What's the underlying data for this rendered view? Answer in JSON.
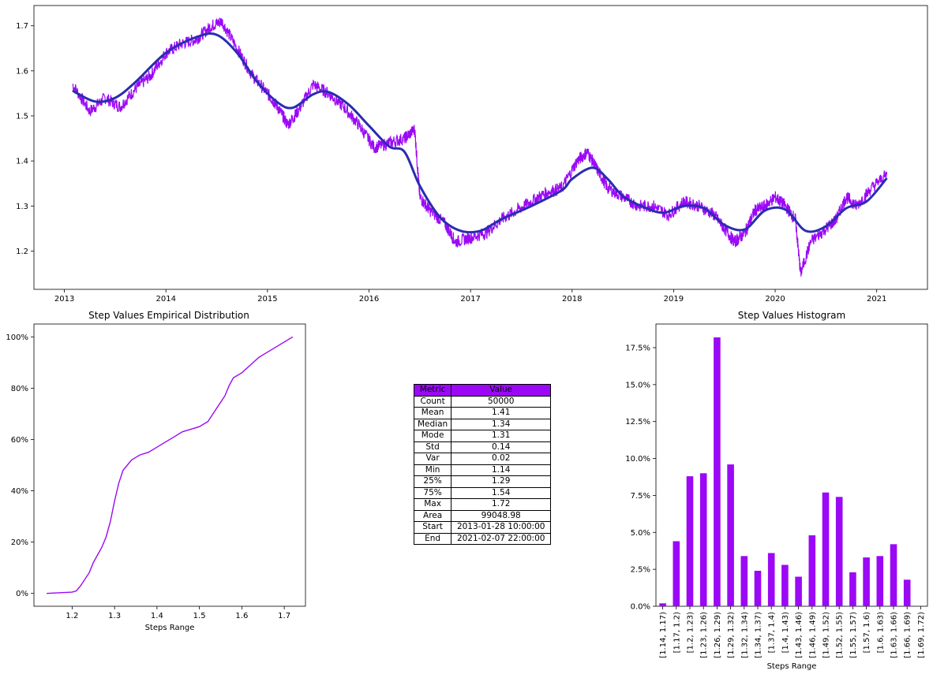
{
  "colors": {
    "series": "#9b08f6",
    "trend": "#2a2cb0",
    "axis": "#000000",
    "header": "#9b08f6"
  },
  "top_chart": {
    "x_ticks": [
      "2013",
      "2014",
      "2015",
      "2016",
      "2017",
      "2018",
      "2019",
      "2020",
      "2021"
    ],
    "y_ticks": [
      "1.2",
      "1.3",
      "1.4",
      "1.5",
      "1.6",
      "1.7"
    ]
  },
  "ecdf_chart": {
    "title": "Step Values Empirical Distribution",
    "xlabel": "Steps Range",
    "x_ticks": [
      "1.2",
      "1.3",
      "1.4",
      "1.5",
      "1.6",
      "1.7"
    ],
    "y_ticks": [
      "0%",
      "20%",
      "40%",
      "60%",
      "80%",
      "100%"
    ]
  },
  "hist_chart": {
    "title": "Step Values Histogram",
    "xlabel": "Steps Range",
    "y_ticks": [
      "0.0%",
      "2.5%",
      "5.0%",
      "7.5%",
      "10.0%",
      "12.5%",
      "15.0%",
      "17.5%"
    ]
  },
  "stats_table": {
    "headers": [
      "Metric",
      "Value"
    ],
    "rows": [
      [
        "Count",
        "50000"
      ],
      [
        "Mean",
        "1.41"
      ],
      [
        "Median",
        "1.34"
      ],
      [
        "Mode",
        "1.31"
      ],
      [
        "Std",
        "0.14"
      ],
      [
        "Var",
        "0.02"
      ],
      [
        "Min",
        "1.14"
      ],
      [
        "25%",
        "1.29"
      ],
      [
        "75%",
        "1.54"
      ],
      [
        "Max",
        "1.72"
      ],
      [
        "Area",
        "99048.98"
      ],
      [
        "Start",
        "2013-01-28 10:00:00"
      ],
      [
        "End",
        "2021-02-07 22:00:00"
      ]
    ]
  },
  "chart_data": [
    {
      "type": "line",
      "series": [
        {
          "values_x": [
            2013.08,
            2013.25,
            2013.4,
            2013.55,
            2013.7,
            2013.85,
            2014.0,
            2014.15,
            2014.3,
            2014.45,
            2014.55,
            2014.7,
            2014.85,
            2015.0,
            2015.1,
            2015.2,
            2015.3,
            2015.45,
            2015.6,
            2015.75,
            2015.9,
            2016.05,
            2016.2,
            2016.35,
            2016.45,
            2016.5,
            2016.6,
            2016.75,
            2016.85,
            2017.0,
            2017.15,
            2017.3,
            2017.45,
            2017.6,
            2017.75,
            2017.9,
            2018.05,
            2018.15,
            2018.25,
            2018.35,
            2018.5,
            2018.65,
            2018.8,
            2018.95,
            2019.1,
            2019.25,
            2019.4,
            2019.5,
            2019.6,
            2019.7,
            2019.8,
            2019.9,
            2020.0,
            2020.1,
            2020.2,
            2020.25,
            2020.35,
            2020.5,
            2020.6,
            2020.7,
            2020.8,
            2020.95,
            2021.1
          ],
          "values_y": [
            1.57,
            1.51,
            1.54,
            1.52,
            1.56,
            1.59,
            1.64,
            1.66,
            1.67,
            1.7,
            1.71,
            1.65,
            1.59,
            1.55,
            1.52,
            1.48,
            1.51,
            1.57,
            1.55,
            1.52,
            1.48,
            1.43,
            1.44,
            1.45,
            1.47,
            1.32,
            1.29,
            1.26,
            1.22,
            1.23,
            1.24,
            1.27,
            1.29,
            1.31,
            1.33,
            1.34,
            1.4,
            1.42,
            1.38,
            1.34,
            1.32,
            1.3,
            1.3,
            1.28,
            1.31,
            1.3,
            1.28,
            1.25,
            1.22,
            1.24,
            1.29,
            1.3,
            1.32,
            1.3,
            1.27,
            1.15,
            1.22,
            1.25,
            1.27,
            1.32,
            1.3,
            1.34,
            1.37
          ]
        },
        {
          "values_x": [
            2013.08,
            2013.3,
            2013.5,
            2013.7,
            2014.0,
            2014.3,
            2014.5,
            2014.7,
            2014.9,
            2015.1,
            2015.25,
            2015.45,
            2015.6,
            2015.8,
            2016.0,
            2016.2,
            2016.35,
            2016.5,
            2016.7,
            2016.9,
            2017.1,
            2017.3,
            2017.6,
            2017.9,
            2018.0,
            2018.2,
            2018.35,
            2018.5,
            2018.7,
            2018.9,
            2019.1,
            2019.3,
            2019.5,
            2019.7,
            2019.9,
            2020.1,
            2020.3,
            2020.5,
            2020.7,
            2020.9,
            2021.1
          ],
          "values_y": [
            1.556,
            1.532,
            1.54,
            1.575,
            1.64,
            1.675,
            1.68,
            1.64,
            1.575,
            1.53,
            1.518,
            1.548,
            1.553,
            1.525,
            1.478,
            1.432,
            1.42,
            1.345,
            1.275,
            1.245,
            1.245,
            1.27,
            1.3,
            1.335,
            1.36,
            1.385,
            1.36,
            1.322,
            1.298,
            1.285,
            1.3,
            1.295,
            1.258,
            1.248,
            1.29,
            1.292,
            1.245,
            1.255,
            1.295,
            1.31,
            1.362
          ]
        }
      ],
      "xlim": [
        2012.7,
        2021.5
      ],
      "ylim": [
        1.115,
        1.745
      ],
      "grid": false
    },
    {
      "type": "line",
      "title": "Step Values Empirical Distribution",
      "xlabel": "Steps Range",
      "x": [
        1.14,
        1.2,
        1.21,
        1.22,
        1.24,
        1.25,
        1.26,
        1.27,
        1.28,
        1.29,
        1.3,
        1.31,
        1.32,
        1.33,
        1.34,
        1.35,
        1.36,
        1.38,
        1.4,
        1.42,
        1.44,
        1.46,
        1.48,
        1.5,
        1.52,
        1.54,
        1.56,
        1.57,
        1.58,
        1.6,
        1.62,
        1.64,
        1.66,
        1.68,
        1.7,
        1.72
      ],
      "y": [
        0,
        0.005,
        0.01,
        0.03,
        0.08,
        0.12,
        0.15,
        0.18,
        0.22,
        0.28,
        0.36,
        0.43,
        0.48,
        0.5,
        0.52,
        0.53,
        0.54,
        0.55,
        0.57,
        0.59,
        0.61,
        0.63,
        0.64,
        0.65,
        0.67,
        0.72,
        0.77,
        0.81,
        0.84,
        0.86,
        0.89,
        0.92,
        0.94,
        0.96,
        0.98,
        1.0
      ],
      "xlim": [
        1.11,
        1.75
      ],
      "ylim": [
        -0.05,
        1.05
      ],
      "grid": false
    },
    {
      "type": "bar",
      "title": "Step Values Histogram",
      "xlabel": "Steps Range",
      "categories": [
        "[1.14, 1.17)",
        "[1.17, 1.2)",
        "[1.2, 1.23)",
        "[1.23, 1.26)",
        "[1.26, 1.29)",
        "[1.29, 1.32)",
        "[1.32, 1.34)",
        "[1.34, 1.37)",
        "[1.37, 1.4)",
        "[1.4, 1.43)",
        "[1.43, 1.46)",
        "[1.46, 1.49)",
        "[1.49, 1.52)",
        "[1.52, 1.55)",
        "[1.55, 1.57)",
        "[1.57, 1.6)",
        "[1.6, 1.63)",
        "[1.63, 1.66)",
        "[1.66, 1.69)",
        "[1.69, 1.72)"
      ],
      "values": [
        0.2,
        4.4,
        8.8,
        9.0,
        18.2,
        9.6,
        3.4,
        2.4,
        3.6,
        2.8,
        2.0,
        4.8,
        7.7,
        7.4,
        2.3,
        3.3,
        3.4,
        4.2,
        1.8,
        0.0
      ],
      "ylim": [
        0,
        19.1
      ],
      "grid": false
    }
  ]
}
